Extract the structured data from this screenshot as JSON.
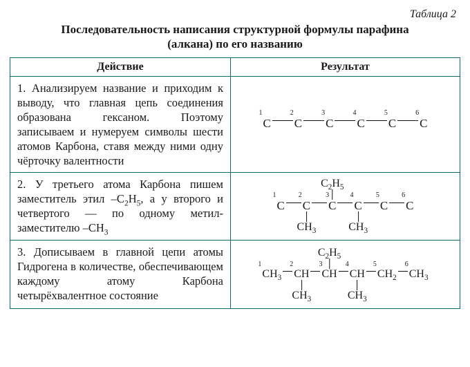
{
  "caption": "Таблица 2",
  "title_line1": "Последовательность написания структурной формулы парафина",
  "title_line2": "(алкана) по его названию",
  "headers": {
    "action": "Действие",
    "result": "Результат"
  },
  "rows": {
    "r1": {
      "action": "1. Анализируем название и при­ходим к выводу, что главная цепь соединения образована гексаном. Поэтому записываем и нумеруем символы шести атомов Карбона, ставя между ними одну чёрточку валентности"
    },
    "r2": {
      "action_prefix": "2. У третьего атома Карбона пи­шем заместитель этил –C",
      "action_mid1": ", а у второго и четвертого — по одно­му метил-заместителю –CH",
      "sub25a": "2",
      "sub25b": "5",
      "sub3": "3"
    },
    "r3": {
      "action": "3. Дописываем в главной цепи атомы Гидрогена в количестве, обеспечивающем каждому атому Карбона четырёхвалентное состояние"
    }
  },
  "chem": {
    "C": "C",
    "CH": "CH",
    "CH2": "CH",
    "CH3": "CH",
    "C2H5_C": "C",
    "C2H5_H": "H",
    "s2": "2",
    "s3": "3",
    "s5": "5",
    "n1": "1",
    "n2": "2",
    "n3": "3",
    "n4": "4",
    "n5": "5",
    "n6": "6"
  },
  "colors": {
    "border": "#0a6a73",
    "text": "#1a1a1a",
    "bg": "#ffffff"
  }
}
